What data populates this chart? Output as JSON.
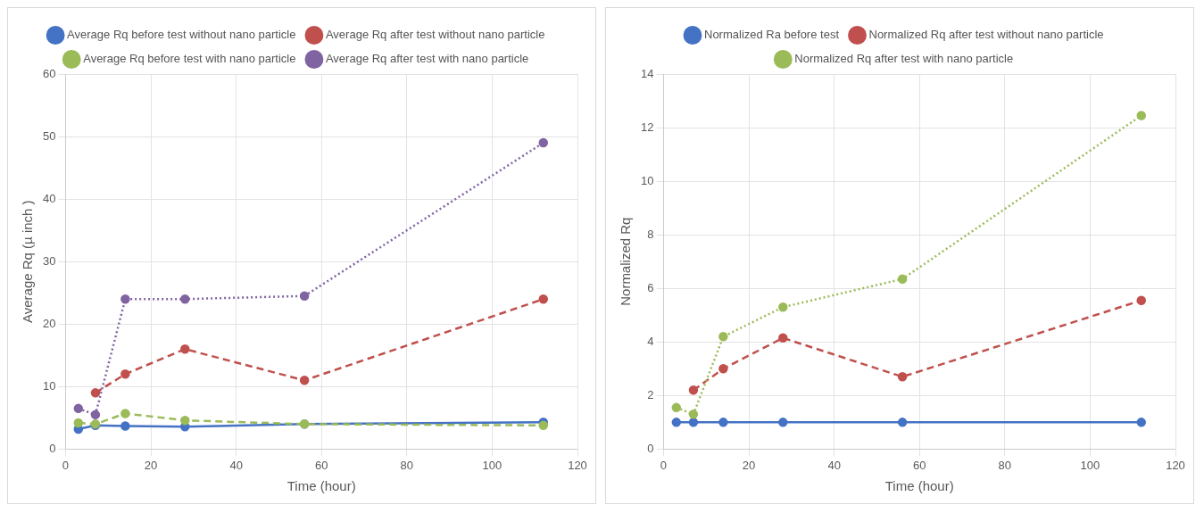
{
  "chart_data": [
    {
      "type": "line",
      "xlabel": "Time (hour)",
      "ylabel": "Average Rq (µ inch )",
      "x": [
        3,
        7,
        14,
        28,
        56,
        112
      ],
      "xlim": [
        0,
        120
      ],
      "xticks": [
        0,
        20,
        40,
        60,
        80,
        100,
        120
      ],
      "ylim": [
        0,
        60
      ],
      "yticks": [
        0,
        10,
        20,
        30,
        40,
        50,
        60
      ],
      "grid": true,
      "legend": "top",
      "marker": "circle",
      "series": [
        {
          "name": "Average Rq before test without nano particle",
          "color": "#4472c4",
          "line_style": "solid",
          "values": [
            3.2,
            3.8,
            3.7,
            3.6,
            4,
            4.3
          ]
        },
        {
          "name": "Average Rq after test without nano particle",
          "color": "#c0504d",
          "line_style": "dashed",
          "values": [
            null,
            9,
            12,
            16,
            11,
            24
          ]
        },
        {
          "name": "Average Rq before test with nano particle",
          "color": "#9bbb59",
          "line_style": "dashed",
          "values": [
            4.2,
            4,
            5.7,
            4.6,
            4,
            3.8
          ]
        },
        {
          "name": "Average Rq after test with nano particle",
          "color": "#8064a2",
          "line_style": "dotted",
          "values": [
            6.5,
            5.5,
            24,
            24,
            24.5,
            49
          ]
        }
      ]
    },
    {
      "type": "line",
      "xlabel": "Time (hour)",
      "ylabel": "Normalized Rq",
      "x": [
        3,
        7,
        14,
        28,
        56,
        112
      ],
      "xlim": [
        0,
        120
      ],
      "xticks": [
        0,
        20,
        40,
        60,
        80,
        100,
        120
      ],
      "ylim": [
        0,
        14
      ],
      "yticks": [
        0,
        2,
        4,
        6,
        8,
        10,
        12,
        14
      ],
      "grid": true,
      "legend": "top",
      "marker": "circle",
      "series": [
        {
          "name": "Normalized Ra before test",
          "color": "#4472c4",
          "line_style": "solid",
          "values": [
            1,
            1,
            1,
            1,
            1,
            1
          ]
        },
        {
          "name": "Normalized Rq after test without nano particle",
          "color": "#c0504d",
          "line_style": "dashed",
          "values": [
            null,
            2.2,
            3,
            4.15,
            2.7,
            5.55
          ]
        },
        {
          "name": "Normalized Rq after test with nano particle",
          "color": "#9bbb59",
          "line_style": "dotted",
          "values": [
            1.55,
            1.3,
            4.2,
            5.3,
            6.35,
            12.45
          ]
        }
      ]
    }
  ]
}
